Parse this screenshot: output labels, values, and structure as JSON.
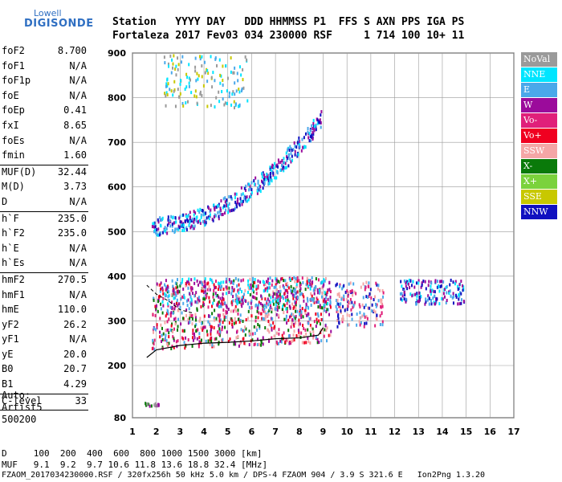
{
  "logo": {
    "line1": "Lowell",
    "line2": "DIGISONDE"
  },
  "header": {
    "row1": "Station   YYYY DAY   DDD HHMMSS P1  FFS S AXN PPS IGA PS",
    "row2": "Fortaleza 2017 Fev03 034 230000 RSF     1 714 100 10+ 11"
  },
  "params": [
    {
      "k": "foF2",
      "v": "8.700"
    },
    {
      "k": "foF1",
      "v": "N/A"
    },
    {
      "k": "foF1p",
      "v": "N/A"
    },
    {
      "k": "foE",
      "v": "N/A"
    },
    {
      "k": "foEp",
      "v": "0.41"
    },
    {
      "k": "fxI",
      "v": "8.65"
    },
    {
      "k": "foEs",
      "v": "N/A"
    },
    {
      "k": "fmin",
      "v": "1.60"
    },
    {
      "sep": true
    },
    {
      "k": "MUF(D)",
      "v": "32.44"
    },
    {
      "k": "M(D)",
      "v": "3.73"
    },
    {
      "k": "D",
      "v": "N/A"
    },
    {
      "sep": true
    },
    {
      "k": "h`F",
      "v": "235.0"
    },
    {
      "k": "h`F2",
      "v": "235.0"
    },
    {
      "k": "h`E",
      "v": "N/A"
    },
    {
      "k": "h`Es",
      "v": "N/A"
    },
    {
      "sep": true
    },
    {
      "k": "hmF2",
      "v": "270.5"
    },
    {
      "k": "hmF1",
      "v": "N/A"
    },
    {
      "k": "hmE",
      "v": "110.0"
    },
    {
      "k": "yF2",
      "v": "26.2"
    },
    {
      "k": "yF1",
      "v": "N/A"
    },
    {
      "k": "yE",
      "v": "20.0"
    },
    {
      "k": "B0",
      "v": "20.7"
    },
    {
      "k": "B1",
      "v": "4.29"
    },
    {
      "sep": true
    },
    {
      "k": "C-level",
      "v": "33"
    },
    {
      "sep": true
    }
  ],
  "auto": {
    "l1": "Auto:",
    "l2": "Artist5",
    "l3": "500200"
  },
  "legend": [
    {
      "label": "NoVal",
      "color": "#9a9a9a"
    },
    {
      "label": "NNE",
      "color": "#00e5ff"
    },
    {
      "label": "E",
      "color": "#4aa8ea"
    },
    {
      "label": "W",
      "color": "#9b0b9b"
    },
    {
      "label": "Vo-",
      "color": "#e0207a"
    },
    {
      "label": "Vo+",
      "color": "#f00020"
    },
    {
      "label": "SSW",
      "color": "#f4a6a6"
    },
    {
      "label": "X-",
      "color": "#0a7a0a"
    },
    {
      "label": "X+",
      "color": "#7bd23c"
    },
    {
      "label": "SSE",
      "color": "#c8c800"
    },
    {
      "label": "NNW",
      "color": "#1010c0"
    }
  ],
  "freq_table": {
    "d_row": "D     100  200  400  600  800 1000 1500 3000 [km]",
    "muf_row": "MUF   9.1  9.2  9.7 10.6 11.8 13.6 18.8 32.4 [MHz]"
  },
  "footer": "FZAOM_2017034230000.RSF / 320fx256h 50 kHz 5.0 km / DPS-4 FZAOM 904 / 3.9 S 321.6 E   Ion2Png 1.3.20",
  "chart_data": {
    "type": "scatter",
    "title": "",
    "xlabel": "",
    "ylabel": "",
    "xlim": [
      1,
      17
    ],
    "ylim": [
      80,
      900
    ],
    "x_ticks": [
      1,
      2,
      3,
      4,
      5,
      6,
      7,
      8,
      9,
      10,
      11,
      12,
      13,
      14,
      15,
      16,
      17
    ],
    "y_ticks": [
      80,
      200,
      300,
      400,
      500,
      600,
      700,
      800,
      900
    ],
    "grid": true,
    "legend_placement": "right",
    "regions": [
      {
        "name": "F-trace-1",
        "x0": 1.8,
        "x1": 9.3,
        "y0": 235,
        "y1": 390,
        "colors": [
          "#f00020",
          "#e0207a",
          "#4aa8ea",
          "#f4a6a6",
          "#9b0b9b",
          "#0a7a0a"
        ],
        "n": 900
      },
      {
        "name": "F-trace-upper",
        "x0": 2.2,
        "x1": 9.3,
        "y0": 330,
        "y1": 400,
        "colors": [
          "#4aa8ea",
          "#00e5ff",
          "#9b0b9b"
        ],
        "n": 220
      },
      {
        "name": "F-trace-2",
        "x0": 1.8,
        "x1": 8.9,
        "y0": 510,
        "y1": 780,
        "colors": [
          "#4aa8ea",
          "#00e5ff",
          "#1010c0",
          "#9b0b9b"
        ],
        "n": 420
      },
      {
        "name": "F-trace-3",
        "x0": 2.3,
        "x1": 5.8,
        "y0": 780,
        "y1": 900,
        "colors": [
          "#4aa8ea",
          "#c8c800",
          "#9a9a9a",
          "#00e5ff"
        ],
        "n": 150
      },
      {
        "name": "scatter-mid",
        "x0": 9.5,
        "x1": 11.5,
        "y0": 290,
        "y1": 390,
        "colors": [
          "#f4a6a6",
          "#4aa8ea",
          "#1010c0",
          "#e0207a"
        ],
        "n": 160
      },
      {
        "name": "scatter-right",
        "x0": 12.2,
        "x1": 14.9,
        "y0": 340,
        "y1": 395,
        "colors": [
          "#1010c0",
          "#4aa8ea",
          "#00e5ff",
          "#9b0b9b"
        ],
        "n": 160
      },
      {
        "name": "Es-low",
        "x0": 1.4,
        "x1": 2.1,
        "y0": 110,
        "y1": 118,
        "colors": [
          "#9a9a9a",
          "#9b0b9b",
          "#0a7a0a"
        ],
        "n": 20
      }
    ],
    "profile_line": [
      [
        1.6,
        218
      ],
      [
        2,
        235
      ],
      [
        3,
        245
      ],
      [
        4,
        250
      ],
      [
        5,
        252
      ],
      [
        6,
        255
      ],
      [
        7,
        260
      ],
      [
        8,
        262
      ],
      [
        8.8,
        268
      ],
      [
        9.0,
        285
      ]
    ],
    "profile_dashed": [
      [
        1.6,
        380
      ],
      [
        2.0,
        360
      ],
      [
        2.5,
        345
      ],
      [
        3,
        325
      ],
      [
        3.5,
        318
      ]
    ]
  }
}
